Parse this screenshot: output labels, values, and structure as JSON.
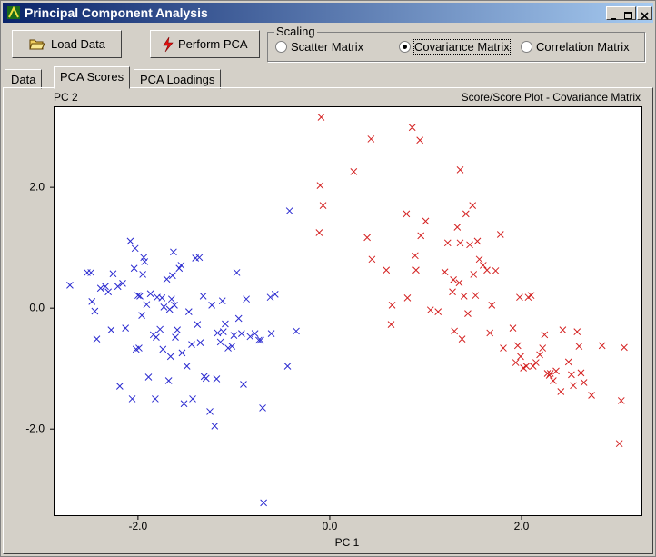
{
  "window": {
    "title": "Principal Component Analysis"
  },
  "toolbar": {
    "buttons": [
      "Load Data",
      "Perform PCA"
    ]
  },
  "scaling": {
    "label": "Scaling",
    "options": [
      "Scatter Matrix",
      "Covariance Matrix",
      "Correlation Matrix"
    ],
    "selected": 1
  },
  "tabs": {
    "items": [
      "Data",
      "PCA Scores",
      "PCA Loadings"
    ],
    "active": 1
  },
  "chart_data": {
    "type": "scatter",
    "title": "Score/Score Plot - Covariance Matrix",
    "x_label": "PC 1",
    "y_label": "PC 2",
    "marker": "x",
    "xlim": [
      -2.88,
      3.26
    ],
    "ylim": [
      -3.44,
      3.34
    ],
    "xticks": [
      {
        "value": -2,
        "label": "-2.0"
      },
      {
        "value": 0,
        "label": "0.0"
      },
      {
        "value": 2,
        "label": "2.0"
      }
    ],
    "yticks": [
      {
        "value": -2,
        "label": "-2.0"
      },
      {
        "value": 0,
        "label": "0.0"
      },
      {
        "value": 2,
        "label": "2.0"
      }
    ],
    "series": [
      {
        "color": "#2a2ad0",
        "x": [
          -2.71,
          -2.53,
          -2.49,
          -2.48,
          -2.45,
          -2.43,
          -2.39,
          -2.34,
          -2.31,
          -2.28,
          -2.26,
          -2.21,
          -2.19,
          -2.16,
          -2.13,
          -2.08,
          -2.06,
          -2.04,
          -2.03,
          -2.02,
          -2.0,
          -1.99,
          -1.98,
          -1.96,
          -1.95,
          -1.94,
          -1.93,
          -1.91,
          -1.89,
          -1.87,
          -1.84,
          -1.82,
          -1.81,
          -1.8,
          -1.77,
          -1.75,
          -1.74,
          -1.73,
          -1.7,
          -1.68,
          -1.67,
          -1.66,
          -1.65,
          -1.64,
          -1.63,
          -1.62,
          -1.61,
          -1.59,
          -1.57,
          -1.55,
          -1.54,
          -1.52,
          -1.49,
          -1.47,
          -1.44,
          -1.43,
          -1.4,
          -1.38,
          -1.36,
          -1.35,
          -1.32,
          -1.31,
          -1.29,
          -1.25,
          -1.23,
          -1.2,
          -1.18,
          -1.17,
          -1.14,
          -1.12,
          -1.11,
          -1.09,
          -1.06,
          -1.02,
          -1.0,
          -0.97,
          -0.95,
          -0.92,
          -0.9,
          -0.87,
          -0.83,
          -0.78,
          -0.74,
          -0.72,
          -0.7,
          -0.69,
          -0.62,
          -0.61,
          -0.57,
          -0.44,
          -0.42,
          -0.35
        ],
        "values": [
          0.38,
          0.59,
          0.59,
          0.11,
          -0.05,
          -0.51,
          0.33,
          0.36,
          0.27,
          -0.36,
          0.57,
          0.36,
          -1.29,
          0.41,
          -0.33,
          1.11,
          -1.5,
          0.66,
          0.99,
          -0.68,
          0.21,
          -0.66,
          0.2,
          -0.12,
          0.56,
          0.84,
          0.77,
          0.06,
          -1.14,
          0.24,
          -0.44,
          -1.5,
          -0.48,
          0.18,
          -0.35,
          0.17,
          -0.68,
          0.02,
          0.48,
          -1.2,
          -0.02,
          -0.8,
          0.15,
          0.54,
          0.93,
          0.05,
          -0.48,
          -0.36,
          0.66,
          0.71,
          -0.74,
          -1.58,
          -0.96,
          -0.06,
          -0.6,
          -1.5,
          0.83,
          -0.27,
          0.84,
          -0.57,
          0.2,
          -1.13,
          -1.16,
          -1.71,
          0.05,
          -1.95,
          -1.17,
          -0.41,
          -0.56,
          0.12,
          -0.39,
          -0.26,
          -0.66,
          -0.63,
          -0.45,
          0.59,
          -0.17,
          -0.42,
          -1.26,
          0.15,
          -0.47,
          -0.42,
          -0.53,
          -0.53,
          -1.65,
          -3.22,
          0.18,
          -0.42,
          0.23,
          -0.96,
          1.61,
          -0.38
        ]
      },
      {
        "color": "#d42020",
        "x": [
          -0.09,
          -0.11,
          -0.1,
          -0.07,
          0.25,
          0.39,
          0.43,
          0.44,
          0.59,
          0.64,
          0.65,
          0.81,
          0.8,
          0.86,
          0.89,
          0.9,
          0.94,
          0.95,
          1.0,
          1.05,
          1.13,
          1.2,
          1.23,
          1.28,
          1.29,
          1.3,
          1.33,
          1.35,
          1.36,
          1.36,
          1.38,
          1.4,
          1.42,
          1.44,
          1.46,
          1.49,
          1.5,
          1.52,
          1.54,
          1.56,
          1.6,
          1.64,
          1.67,
          1.69,
          1.73,
          1.78,
          1.81,
          1.91,
          1.94,
          1.96,
          1.98,
          1.99,
          2.02,
          2.05,
          2.07,
          2.1,
          2.12,
          2.15,
          2.19,
          2.22,
          2.24,
          2.27,
          2.29,
          2.3,
          2.33,
          2.36,
          2.41,
          2.43,
          2.49,
          2.52,
          2.54,
          2.58,
          2.6,
          2.62,
          2.65,
          2.73,
          2.84,
          3.02,
          3.04,
          3.07
        ],
        "values": [
          3.16,
          1.25,
          2.03,
          1.7,
          2.26,
          1.17,
          2.8,
          0.81,
          0.63,
          -0.27,
          0.05,
          0.17,
          1.56,
          2.99,
          0.87,
          0.63,
          2.78,
          1.2,
          1.44,
          -0.03,
          -0.06,
          0.6,
          1.08,
          0.27,
          0.47,
          -0.38,
          1.34,
          0.42,
          2.29,
          1.08,
          -0.51,
          0.2,
          1.56,
          -0.09,
          1.05,
          1.7,
          0.56,
          0.21,
          1.11,
          0.81,
          0.71,
          0.63,
          -0.41,
          0.05,
          0.62,
          1.22,
          -0.66,
          -0.33,
          -0.9,
          -0.62,
          0.18,
          -0.8,
          -0.99,
          -0.96,
          0.18,
          0.21,
          -0.96,
          -0.9,
          -0.77,
          -0.66,
          -0.44,
          -1.08,
          -1.11,
          -1.08,
          -1.2,
          -1.04,
          -1.38,
          -0.36,
          -0.89,
          -1.1,
          -1.28,
          -0.39,
          -0.63,
          -1.07,
          -1.23,
          -1.44,
          -0.62,
          -2.24,
          -1.53,
          -0.65
        ]
      }
    ]
  }
}
